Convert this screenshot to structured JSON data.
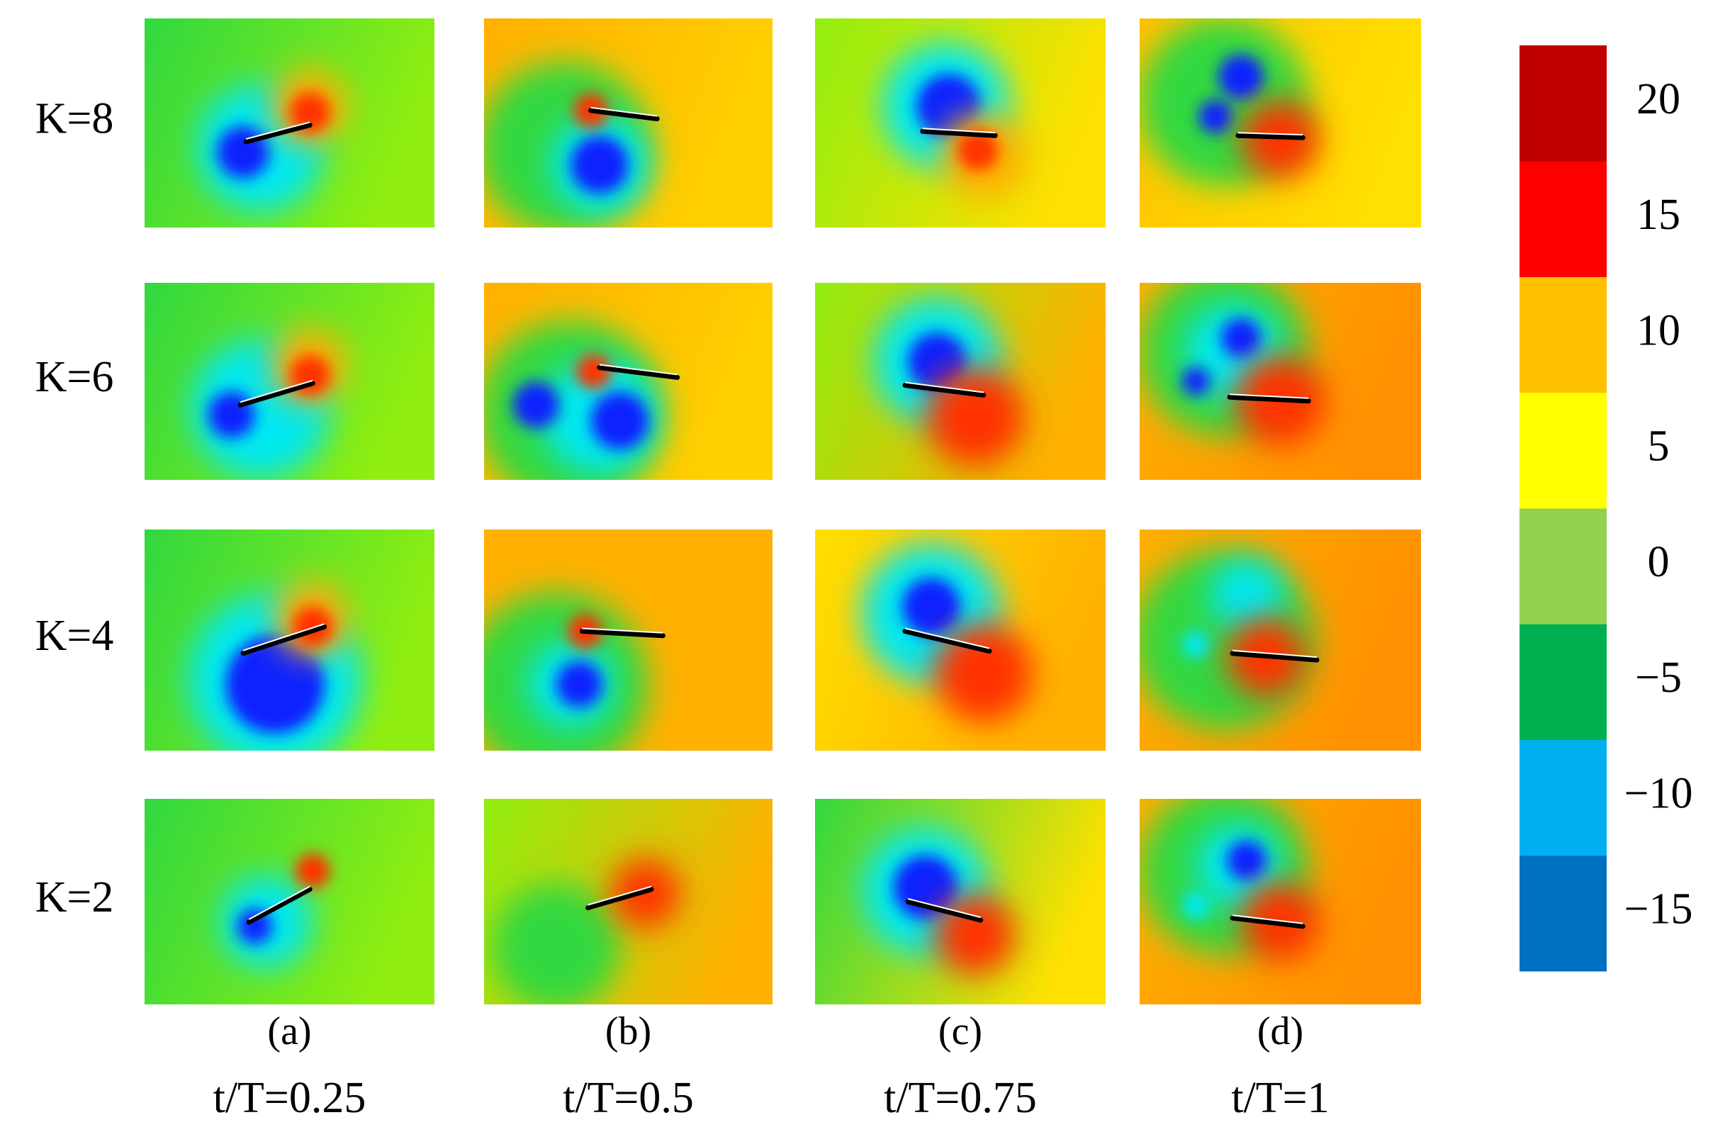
{
  "row_labels": [
    "K=8",
    "K=6",
    "K=4",
    "K=2"
  ],
  "columns": [
    {
      "letter": "(a)",
      "time": "t/T=0.25"
    },
    {
      "letter": "(b)",
      "time": "t/T=0.5"
    },
    {
      "letter": "(c)",
      "time": "t/T=0.75"
    },
    {
      "letter": "(d)",
      "time": "t/T=1"
    }
  ],
  "colorbar": {
    "lim": [
      -17.5,
      22.5
    ],
    "ticks": [
      20,
      15,
      10,
      5,
      0,
      {
        "value": -5,
        "label": "−5"
      },
      {
        "value": -10,
        "label": "−10"
      },
      {
        "value": -15,
        "label": "−15"
      }
    ],
    "colors": [
      "#0070c0",
      "#00b0f0",
      "#00b050",
      "#92d050",
      "#ffff00",
      "#ffc000",
      "#ff0000",
      "#c00000"
    ]
  }
}
